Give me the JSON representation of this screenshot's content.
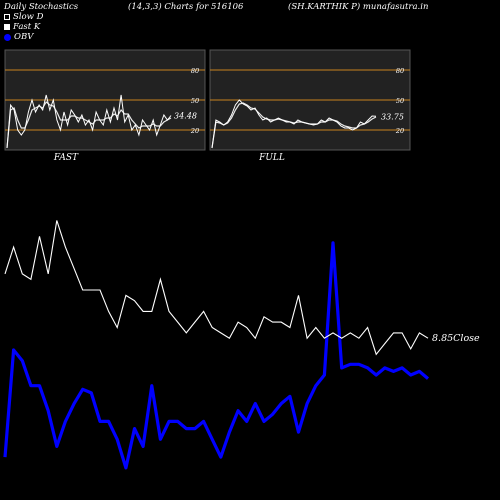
{
  "header": {
    "title": "Daily Stochastics",
    "params": "(14,3,3) Charts for 516106",
    "site": "(SH.KARTHIK P) munafasutra.in"
  },
  "legend": {
    "slow_d": "Slow  D",
    "fast_k": "Fast K",
    "obv": "OBV"
  },
  "colors": {
    "background": "#000000",
    "panel_bg": "#222222",
    "level_line": "#c8821e",
    "lines": "#ffffff",
    "obv": "#0000ff"
  },
  "chart_data": [
    {
      "type": "line",
      "title": "FAST",
      "ylim": [
        0,
        100
      ],
      "yticks": [
        20,
        50,
        80
      ],
      "level_lines": [
        20,
        50,
        80
      ],
      "last_value_label": "34.48",
      "series": [
        {
          "name": "Fast K",
          "values": [
            2,
            45,
            40,
            20,
            15,
            20,
            38,
            50,
            38,
            45,
            40,
            55,
            40,
            50,
            30,
            20,
            38,
            25,
            40,
            35,
            28,
            35,
            25,
            30,
            20,
            38,
            30,
            25,
            40,
            28,
            42,
            30,
            55,
            28,
            35,
            20,
            25,
            15,
            30,
            25,
            20,
            30,
            15,
            25,
            35,
            30,
            34.48
          ]
        },
        {
          "name": "Slow  D",
          "values": [
            2,
            40,
            42,
            30,
            22,
            22,
            30,
            40,
            42,
            44,
            42,
            48,
            45,
            44,
            38,
            30,
            30,
            30,
            34,
            34,
            32,
            32,
            30,
            28,
            26,
            30,
            30,
            30,
            32,
            32,
            36,
            34,
            40,
            36,
            36,
            30,
            26,
            22,
            24,
            24,
            24,
            26,
            24,
            24,
            28,
            30,
            32
          ]
        }
      ]
    },
    {
      "type": "line",
      "title": "FULL",
      "ylim": [
        0,
        100
      ],
      "yticks": [
        20,
        50,
        80
      ],
      "level_lines": [
        20,
        50,
        80
      ],
      "last_value_label": "33.75",
      "series": [
        {
          "name": "Fast K",
          "values": [
            2,
            30,
            28,
            25,
            28,
            35,
            45,
            50,
            46,
            44,
            40,
            42,
            35,
            30,
            32,
            28,
            30,
            32,
            30,
            28,
            28,
            26,
            30,
            28,
            27,
            26,
            25,
            26,
            30,
            28,
            32,
            30,
            28,
            24,
            22,
            22,
            20,
            22,
            28,
            26,
            30,
            34,
            33.75
          ]
        },
        {
          "name": "Slow  D",
          "values": [
            2,
            28,
            27,
            25,
            27,
            32,
            40,
            46,
            47,
            45,
            42,
            41,
            37,
            33,
            31,
            30,
            30,
            31,
            30,
            29,
            28,
            27,
            28,
            28,
            27,
            26,
            26,
            26,
            28,
            28,
            30,
            30,
            29,
            26,
            24,
            23,
            22,
            22,
            25,
            26,
            28,
            31,
            33
          ]
        }
      ]
    },
    {
      "type": "line",
      "title": "",
      "last_value_label": "8.85",
      "last_value_unit": "Close",
      "series": [
        {
          "name": "Close",
          "values": [
            9.45,
            9.7,
            9.45,
            9.4,
            9.8,
            9.45,
            9.95,
            9.7,
            9.5,
            9.3,
            9.3,
            9.3,
            9.1,
            8.95,
            9.25,
            9.2,
            9.1,
            9.1,
            9.4,
            9.1,
            9.0,
            8.9,
            9.0,
            9.1,
            8.95,
            8.9,
            8.85,
            9.0,
            8.95,
            8.85,
            9.05,
            9.0,
            9.0,
            8.95,
            9.25,
            8.85,
            8.95,
            8.85,
            8.9,
            8.85,
            8.9,
            8.85,
            8.95,
            8.7,
            8.8,
            8.9,
            8.9,
            8.75,
            8.9,
            8.85
          ]
        },
        {
          "name": "OBV",
          "values": [
            5,
            35,
            32,
            25,
            25,
            18,
            8,
            15,
            20,
            24,
            23,
            15,
            15,
            10,
            2,
            13,
            8,
            25,
            10,
            15,
            15,
            13,
            13,
            15,
            10,
            5,
            12,
            18,
            15,
            20,
            15,
            17,
            20,
            22,
            12,
            20,
            25,
            28,
            65,
            30,
            31,
            31,
            30,
            28,
            30,
            29,
            30,
            28,
            29,
            27
          ]
        }
      ]
    }
  ]
}
